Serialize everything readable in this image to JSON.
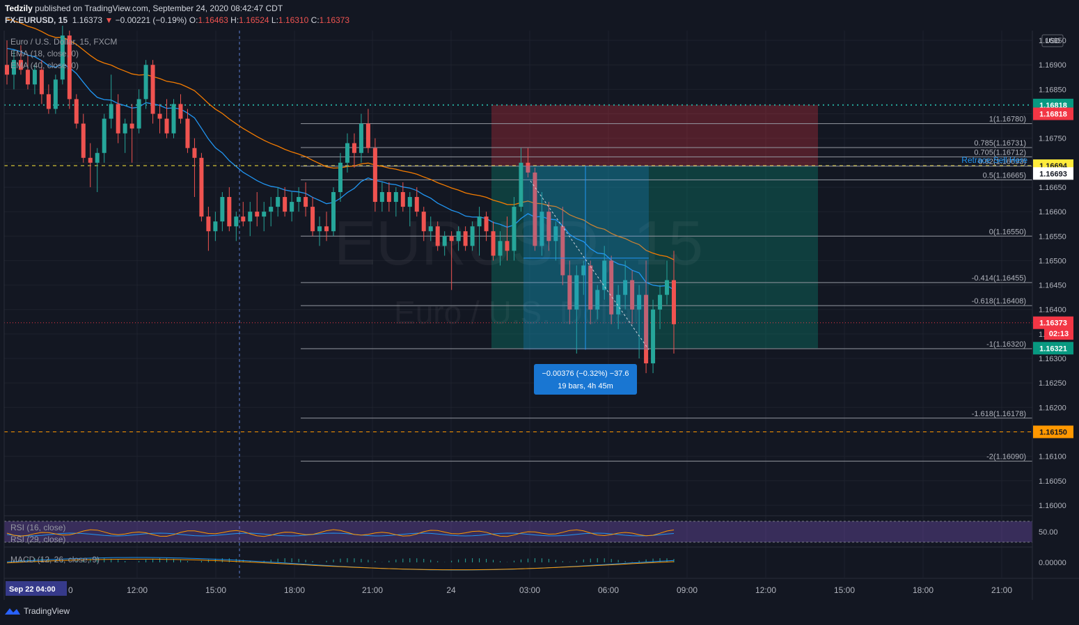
{
  "header": {
    "publisher": "Tedzily",
    "published_text": "published on TradingView.com, September 24, 2020 08:42:47 CDT",
    "symbol": "FX:EURUSD, 15",
    "last": "1.16373",
    "change": "−0.00221 (−0.19%)",
    "O": "1.16463",
    "H": "1.16524",
    "L": "1.16310",
    "C": "1.16373"
  },
  "legend": {
    "title": "Euro / U.S. Dollar, 15, FXCM",
    "ema18": "EMA (18, close, 0)",
    "ema40": "EMA (40, close, 0)",
    "rsi16": "RSI (16, close)",
    "rsi29": "RSI (29, close)",
    "macd": "MACD (12, 26, close, 9)"
  },
  "watermark": {
    "symbol": "EURUSD, 15",
    "name": "Euro / U.S. Dollar"
  },
  "currency": "USD",
  "footer": {
    "brand": "TradingView"
  },
  "time_axis": {
    "labels": [
      "12:00",
      "15:00",
      "18:00",
      "21:00",
      "24",
      "03:00",
      "06:00",
      "09:00",
      "12:00",
      "15:00",
      "18:00",
      "21:00"
    ],
    "cursor_label": "Sep 22   04:00",
    "cursor_tail": "0"
  },
  "chart_data": {
    "type": "candlestick",
    "ylim": [
      1.1596,
      1.1699
    ],
    "price_ticks": [
      "1.16950",
      "1.16900",
      "1.16850",
      "1.16800",
      "1.16750",
      "1.16700",
      "1.16650",
      "1.16600",
      "1.16550",
      "1.16500",
      "1.16450",
      "1.16400",
      "1.16350",
      "1.16300",
      "1.16250",
      "1.16200",
      "1.16150",
      "1.16100",
      "1.16050",
      "1.16000"
    ],
    "price_labels": [
      {
        "text": "1.16818",
        "price": 1.16818,
        "bg": "#089981",
        "fg": "#ffffff"
      },
      {
        "text": "1.16818",
        "price": 1.168,
        "bg": "#f23645",
        "fg": "#ffffff"
      },
      {
        "text": "1.16694",
        "price": 1.16694,
        "bg": "#ffeb3b",
        "fg": "#131722"
      },
      {
        "text": "1.16693",
        "price": 1.16678,
        "bg": "#ffffff",
        "fg": "#131722"
      },
      {
        "text": "1.16373",
        "price": 1.16373,
        "bg": "#f23645",
        "fg": "#ffffff"
      },
      {
        "text": "02:13",
        "price": 1.16351,
        "bg": "#f23645",
        "fg": "#ffffff"
      },
      {
        "text": "1.16321",
        "price": 1.16321,
        "bg": "#089981",
        "fg": "#ffffff"
      },
      {
        "text": "1.16150",
        "price": 1.1615,
        "bg": "#ff9800",
        "fg": "#131722"
      }
    ],
    "fib_levels": [
      {
        "label": "1(1.16780)",
        "price": 1.1678
      },
      {
        "label": "0.785(1.16731)",
        "price": 1.16731
      },
      {
        "label": "0.705(1.16712)",
        "price": 1.16712
      },
      {
        "label": "0.62(1.16693)",
        "price": 1.16693
      },
      {
        "label": "0.5(1.16665)",
        "price": 1.16665
      },
      {
        "label": "0(1.16550)",
        "price": 1.1655
      },
      {
        "label": "-0.414(1.16455)",
        "price": 1.16455
      },
      {
        "label": "-0.618(1.16408)",
        "price": 1.16408
      },
      {
        "label": "-1(1.16320)",
        "price": 1.1632
      },
      {
        "label": "-1.618(1.16178)",
        "price": 1.16178
      },
      {
        "label": "-2(1.16090)",
        "price": 1.1609
      }
    ],
    "annotation": "Retrace Sell Here",
    "measure": {
      "line1": "−0.00376 (−0.32%) −37.6",
      "line2": "19 bars, 4h 45m"
    },
    "short_position": {
      "entry": 1.16694,
      "stop": 1.16818,
      "target": 1.16321
    },
    "horizontal_lines": [
      {
        "price": 1.16818,
        "color": "#26a69a",
        "style": "dotted"
      },
      {
        "price": 1.16694,
        "color": "#ffeb3b",
        "style": "dashed"
      },
      {
        "price": 1.1615,
        "color": "#ff9800",
        "style": "dashed"
      }
    ],
    "candles": [
      [
        1.169,
        1.1695,
        1.1686,
        1.1688
      ],
      [
        1.1688,
        1.1693,
        1.1685,
        1.1691
      ],
      [
        1.1691,
        1.1694,
        1.1688,
        1.1689
      ],
      [
        1.1689,
        1.1692,
        1.1685,
        1.1686
      ],
      [
        1.1686,
        1.169,
        1.1684,
        1.1689
      ],
      [
        1.1689,
        1.1691,
        1.1682,
        1.1684
      ],
      [
        1.1684,
        1.1686,
        1.168,
        1.1681
      ],
      [
        1.1681,
        1.1688,
        1.168,
        1.1687
      ],
      [
        1.1687,
        1.1698,
        1.1686,
        1.1696
      ],
      [
        1.1696,
        1.1697,
        1.1681,
        1.1683
      ],
      [
        1.1683,
        1.1684,
        1.1677,
        1.1678
      ],
      [
        1.1678,
        1.168,
        1.167,
        1.1671
      ],
      [
        1.1671,
        1.1674,
        1.1665,
        1.167
      ],
      [
        1.167,
        1.1673,
        1.1664,
        1.1672
      ],
      [
        1.1672,
        1.168,
        1.167,
        1.1679
      ],
      [
        1.1679,
        1.1688,
        1.1677,
        1.1682
      ],
      [
        1.1682,
        1.1684,
        1.1674,
        1.1676
      ],
      [
        1.1676,
        1.1679,
        1.1672,
        1.1678
      ],
      [
        1.1678,
        1.1682,
        1.167,
        1.1677
      ],
      [
        1.1677,
        1.1685,
        1.1676,
        1.1683
      ],
      [
        1.1683,
        1.1691,
        1.1681,
        1.169
      ],
      [
        1.169,
        1.1691,
        1.1678,
        1.168
      ],
      [
        1.168,
        1.1682,
        1.1676,
        1.1679
      ],
      [
        1.1679,
        1.1683,
        1.1675,
        1.1676
      ],
      [
        1.1676,
        1.1683,
        1.1675,
        1.1682
      ],
      [
        1.1682,
        1.1684,
        1.1678,
        1.1679
      ],
      [
        1.1679,
        1.1681,
        1.1672,
        1.1673
      ],
      [
        1.1673,
        1.1675,
        1.1663,
        1.1671
      ],
      [
        1.1671,
        1.1672,
        1.1658,
        1.1659
      ],
      [
        1.1659,
        1.1661,
        1.1652,
        1.1656
      ],
      [
        1.1656,
        1.166,
        1.1654,
        1.1658
      ],
      [
        1.1658,
        1.1664,
        1.1656,
        1.1663
      ],
      [
        1.1663,
        1.1665,
        1.1656,
        1.1657
      ],
      [
        1.1657,
        1.166,
        1.1654,
        1.1659
      ],
      [
        1.1659,
        1.1662,
        1.1657,
        1.1658
      ],
      [
        1.1658,
        1.1662,
        1.1655,
        1.166
      ],
      [
        1.166,
        1.1664,
        1.1657,
        1.1659
      ],
      [
        1.1659,
        1.1662,
        1.1656,
        1.166
      ],
      [
        1.166,
        1.1663,
        1.1657,
        1.1661
      ],
      [
        1.1661,
        1.1665,
        1.1659,
        1.1663
      ],
      [
        1.1663,
        1.1665,
        1.1659,
        1.166
      ],
      [
        1.166,
        1.1664,
        1.1658,
        1.1662
      ],
      [
        1.1662,
        1.1665,
        1.166,
        1.1663
      ],
      [
        1.1663,
        1.1666,
        1.1659,
        1.1661
      ],
      [
        1.1661,
        1.1663,
        1.1655,
        1.1656
      ],
      [
        1.1656,
        1.1659,
        1.1653,
        1.1657
      ],
      [
        1.1657,
        1.166,
        1.1654,
        1.1656
      ],
      [
        1.1656,
        1.1665,
        1.1655,
        1.1664
      ],
      [
        1.1664,
        1.1672,
        1.1662,
        1.167
      ],
      [
        1.167,
        1.1676,
        1.1668,
        1.1674
      ],
      [
        1.1674,
        1.1676,
        1.1669,
        1.1672
      ],
      [
        1.1672,
        1.168,
        1.167,
        1.1678
      ],
      [
        1.1678,
        1.1681,
        1.1672,
        1.1673
      ],
      [
        1.1673,
        1.1675,
        1.166,
        1.1662
      ],
      [
        1.1662,
        1.1666,
        1.166,
        1.1664
      ],
      [
        1.1664,
        1.1666,
        1.166,
        1.1662
      ],
      [
        1.1662,
        1.1665,
        1.1659,
        1.1664
      ],
      [
        1.1664,
        1.1666,
        1.166,
        1.1661
      ],
      [
        1.1661,
        1.1664,
        1.1657,
        1.1663
      ],
      [
        1.1663,
        1.1665,
        1.1659,
        1.166
      ],
      [
        1.166,
        1.1661,
        1.1654,
        1.1656
      ],
      [
        1.1656,
        1.1659,
        1.1654,
        1.1657
      ],
      [
        1.1657,
        1.1658,
        1.1652,
        1.1653
      ],
      [
        1.1653,
        1.1656,
        1.1651,
        1.1655
      ],
      [
        1.1655,
        1.1656,
        1.1644,
        1.1654
      ],
      [
        1.1654,
        1.1657,
        1.1652,
        1.1656
      ],
      [
        1.1656,
        1.1657,
        1.1652,
        1.1653
      ],
      [
        1.1653,
        1.1658,
        1.1652,
        1.1657
      ],
      [
        1.1657,
        1.1661,
        1.1651,
        1.1659
      ],
      [
        1.1659,
        1.166,
        1.1654,
        1.1656
      ],
      [
        1.1656,
        1.1658,
        1.165,
        1.1651
      ],
      [
        1.1651,
        1.1656,
        1.1649,
        1.1654
      ],
      [
        1.1654,
        1.1659,
        1.165,
        1.1652
      ],
      [
        1.1652,
        1.1663,
        1.165,
        1.1661
      ],
      [
        1.1661,
        1.1673,
        1.166,
        1.167
      ],
      [
        1.167,
        1.1673,
        1.1667,
        1.1668
      ],
      [
        1.1668,
        1.1669,
        1.1652,
        1.1653
      ],
      [
        1.1653,
        1.1664,
        1.1651,
        1.166
      ],
      [
        1.166,
        1.1662,
        1.1652,
        1.1654
      ],
      [
        1.1654,
        1.1658,
        1.165,
        1.1657
      ],
      [
        1.1657,
        1.1661,
        1.1645,
        1.1647
      ],
      [
        1.1647,
        1.165,
        1.1637,
        1.164
      ],
      [
        1.164,
        1.1649,
        1.1631,
        1.1647
      ],
      [
        1.1647,
        1.165,
        1.1643,
        1.1649
      ],
      [
        1.1649,
        1.165,
        1.1637,
        1.164
      ],
      [
        1.164,
        1.1645,
        1.1638,
        1.1644
      ],
      [
        1.1644,
        1.1653,
        1.1642,
        1.165
      ],
      [
        1.165,
        1.1651,
        1.1637,
        1.1639
      ],
      [
        1.1639,
        1.1645,
        1.1636,
        1.1643
      ],
      [
        1.1643,
        1.165,
        1.164,
        1.1646
      ],
      [
        1.1646,
        1.1648,
        1.1637,
        1.164
      ],
      [
        1.164,
        1.1645,
        1.163,
        1.1643
      ],
      [
        1.1643,
        1.165,
        1.1627,
        1.1629
      ],
      [
        1.1629,
        1.1642,
        1.1627,
        1.164
      ],
      [
        1.164,
        1.1645,
        1.1636,
        1.1643
      ],
      [
        1.1643,
        1.165,
        1.1641,
        1.1646
      ],
      [
        1.1646,
        1.1652,
        1.1631,
        1.1637
      ]
    ]
  }
}
